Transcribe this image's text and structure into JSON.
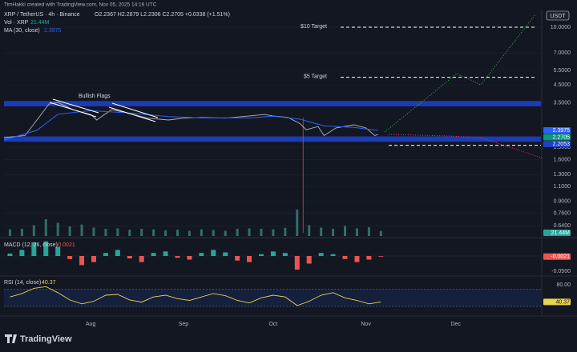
{
  "header": {
    "credit": "TimHakki created with TradingView.com, Nov 05, 2025 14:16 UTC",
    "symbol": "XRP / TetherUS · 4h · Binance",
    "ohlc": "O2.2367 H2.2879 L2.2306 C2.2705 +0.0338 (+1.51%)",
    "currency": "USDT",
    "logo": "TradingView"
  },
  "chart_data": [
    {
      "type": "line",
      "log_scale": true,
      "color": "#b2b5be",
      "close_color": "#089981",
      "x": [
        184,
        191,
        195,
        199,
        202,
        207,
        213,
        215,
        220,
        226,
        232,
        239,
        244,
        250,
        258,
        266,
        271,
        274,
        279,
        283,
        285,
        289,
        291,
        295,
        301,
        305,
        308,
        309
      ],
      "values": [
        2.17,
        2.23,
        2.77,
        3.45,
        3.53,
        3.2,
        2.99,
        2.77,
        3.2,
        3.03,
        2.84,
        2.77,
        2.84,
        2.87,
        2.84,
        2.93,
        2.99,
        2.93,
        2.87,
        2.63,
        2.42,
        2.53,
        2.23,
        2.48,
        2.59,
        2.48,
        2.23,
        2.2705
      ],
      "ma": {
        "name": "MA (30, close)",
        "color": "#2962ff",
        "x": [
          184,
          195,
          202,
          213,
          226,
          239,
          250,
          266,
          274,
          283,
          291,
          301,
          309
        ],
        "values": [
          2.1,
          2.4,
          3.0,
          3.15,
          3.05,
          2.9,
          2.85,
          2.85,
          2.92,
          2.8,
          2.55,
          2.5,
          2.3975
        ]
      },
      "spike": {
        "x": 284,
        "low": 0.58,
        "high": 2.85,
        "color": "#f23645"
      },
      "zones": [
        {
          "from": 3.35,
          "to": 3.6,
          "color": "#1e40c8"
        },
        {
          "from": 2.05,
          "to": 2.2053,
          "color": "#1e40c8"
        }
      ],
      "targets": [
        {
          "label": "$10 Target",
          "value": 10
        },
        {
          "label": "$5 Target",
          "value": 5
        }
      ],
      "support_line": 1.95,
      "annotation": "Bullish Flags",
      "xlim": [
        184,
        363.5
      ],
      "xticks": [
        {
          "value": 213,
          "label": "Aug"
        },
        {
          "value": 244,
          "label": "Sep"
        },
        {
          "value": 274,
          "label": "Oct"
        },
        {
          "value": 305,
          "label": "Nov"
        },
        {
          "value": 335,
          "label": "Dec"
        }
      ],
      "ylim": [
        0.556,
        12.76
      ],
      "yticks": [
        {
          "value": 10,
          "label": "10.0000"
        },
        {
          "value": 7,
          "label": "7.0000"
        },
        {
          "value": 5.5,
          "label": "5.5000"
        },
        {
          "value": 4.5,
          "label": "4.5000"
        },
        {
          "value": 3.5,
          "label": "3.5000"
        },
        {
          "value": 1.9,
          "label": "1.9000"
        },
        {
          "value": 1.6,
          "label": "1.6000"
        },
        {
          "value": 1.3,
          "label": "1.3000"
        },
        {
          "value": 1.1,
          "label": "1.1000"
        },
        {
          "value": 0.9,
          "label": "0.9000"
        },
        {
          "value": 0.76,
          "label": "0.7600"
        },
        {
          "value": 0.64,
          "label": "0.6400"
        }
      ],
      "grid": true
    },
    {
      "type": "bar",
      "name": "Vol · XRP",
      "color": "#2f6f68",
      "x": [
        186,
        190,
        194,
        198,
        202,
        206,
        210,
        214,
        218,
        222,
        226,
        230,
        234,
        238,
        242,
        246,
        250,
        254,
        258,
        262,
        266,
        270,
        274,
        278,
        282,
        286,
        290,
        294,
        298,
        302,
        306,
        310
      ],
      "values": [
        28,
        30,
        45,
        70,
        55,
        40,
        48,
        35,
        30,
        32,
        26,
        30,
        28,
        24,
        26,
        22,
        28,
        25,
        22,
        30,
        32,
        30,
        28,
        34,
        110,
        45,
        35,
        30,
        42,
        32,
        36,
        21.44
      ],
      "value_labels": [
        null,
        null,
        null,
        null,
        null,
        null,
        null,
        null,
        null,
        null,
        null,
        null,
        null,
        null,
        null,
        null,
        null,
        null,
        null,
        null,
        null,
        null,
        null,
        null,
        null,
        null,
        null,
        null,
        null,
        null,
        null,
        "21.44M"
      ],
      "ylim": [
        0,
        110
      ]
    },
    {
      "type": "histogram",
      "title": "MACD (12, 26, close)",
      "last_value": -0.0021,
      "colors": {
        "up": "#26a69a",
        "down": "#ef5350"
      },
      "x": [
        186,
        190,
        194,
        198,
        202,
        206,
        210,
        214,
        218,
        222,
        226,
        230,
        234,
        238,
        242,
        246,
        250,
        254,
        258,
        262,
        266,
        270,
        274,
        278,
        282,
        286,
        290,
        294,
        298,
        302,
        306,
        310
      ],
      "values": [
        0.008,
        0.02,
        0.045,
        0.048,
        0.03,
        -0.01,
        -0.03,
        -0.02,
        0.01,
        0.02,
        -0.008,
        -0.02,
        0.01,
        0.015,
        -0.006,
        -0.012,
        0.01,
        0.02,
        0.012,
        -0.015,
        -0.02,
        0.006,
        0.015,
        0.01,
        -0.045,
        -0.025,
        0.01,
        0.006,
        -0.01,
        -0.02,
        -0.012,
        -0.0021
      ],
      "ylim": [
        -0.0605,
        0.0526
      ],
      "yticks": [
        {
          "value": -0.05,
          "label": "-0.0500"
        }
      ]
    },
    {
      "type": "line",
      "title": "RSI (14, close)",
      "color": "#e8d44d",
      "x": [
        186,
        190,
        194,
        198,
        202,
        206,
        210,
        214,
        218,
        222,
        226,
        230,
        234,
        238,
        242,
        246,
        250,
        254,
        258,
        262,
        266,
        270,
        274,
        278,
        282,
        286,
        290,
        294,
        298,
        302,
        306,
        310
      ],
      "values": [
        52,
        60,
        72,
        76,
        62,
        45,
        36,
        42,
        56,
        58,
        45,
        40,
        52,
        56,
        48,
        44,
        52,
        60,
        55,
        44,
        38,
        50,
        56,
        52,
        32,
        42,
        56,
        62,
        50,
        44,
        36,
        40.37
      ],
      "bands": [
        70,
        30
      ],
      "ylim": [
        11.4,
        97
      ],
      "yticks": [
        {
          "value": 80,
          "label": "80.00"
        }
      ]
    }
  ]
}
